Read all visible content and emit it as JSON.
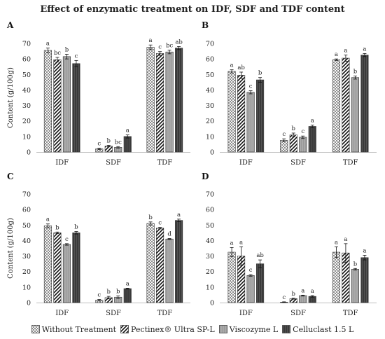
{
  "figure_title": "Effect of enzymatic treatment on IDF, SDF and TDF content",
  "colors": {
    "without_treatment": "#ffffff",
    "pectinex": "#ffffff",
    "viscozyme": "#a9a9a9",
    "celluclast": "#404040"
  },
  "legend": [
    {
      "name": "Without Treatment",
      "pattern": "dots"
    },
    {
      "name": "Pectinex® Ultra SP-L",
      "pattern": "diag"
    },
    {
      "name": "Viscozyme L",
      "pattern": "gray"
    },
    {
      "name": "Celluclast 1.5 L",
      "pattern": "dark"
    }
  ],
  "chart_data": [
    {
      "panel": "A",
      "type": "bar",
      "ylabel": "Content (g/100g)",
      "xlabel": "",
      "ylim": [
        0,
        70
      ],
      "yticks": [
        0,
        10,
        20,
        30,
        40,
        50,
        60,
        70
      ],
      "grid": false,
      "categories": [
        "IDF",
        "SDF",
        "TDF"
      ],
      "series": [
        {
          "name": "Without Treatment",
          "values": [
            65.5,
            2,
            67.5
          ],
          "errors": [
            1.5,
            0.5,
            1.5
          ],
          "letters": [
            "a",
            "c",
            "a"
          ]
        },
        {
          "name": "Pectinex® Ultra SP-L",
          "values": [
            59.5,
            3.8,
            63.5
          ],
          "errors": [
            1.5,
            0.5,
            1.2
          ],
          "letters": [
            "bc",
            "b",
            "c"
          ]
        },
        {
          "name": "Viscozyme L",
          "values": [
            61.5,
            3,
            64.5
          ],
          "errors": [
            1.5,
            0.5,
            1.2
          ],
          "letters": [
            "b",
            "bc",
            "bc"
          ]
        },
        {
          "name": "Celluclast 1.5 L",
          "values": [
            57,
            10,
            67
          ],
          "errors": [
            2,
            1,
            1
          ],
          "letters": [
            "c",
            "a",
            "ab"
          ]
        }
      ]
    },
    {
      "panel": "B",
      "type": "bar",
      "ylabel": "",
      "xlabel": "",
      "ylim": [
        0,
        70
      ],
      "yticks": [
        0,
        10,
        20,
        30,
        40,
        50,
        60,
        70
      ],
      "grid": false,
      "categories": [
        "IDF",
        "SDF",
        "TDF"
      ],
      "series": [
        {
          "name": "Without Treatment",
          "values": [
            52,
            7.5,
            59.5
          ],
          "errors": [
            1,
            1,
            0.5
          ],
          "letters": [
            "a",
            "c",
            "a"
          ]
        },
        {
          "name": "Pectinex® Ultra SP-L",
          "values": [
            49.5,
            11,
            60.5
          ],
          "errors": [
            2,
            1.2,
            2
          ],
          "letters": [
            "ab",
            "b",
            "a"
          ]
        },
        {
          "name": "Viscozyme L",
          "values": [
            38.5,
            9.5,
            48
          ],
          "errors": [
            1,
            0.8,
            1
          ],
          "letters": [
            "c",
            "c",
            "b"
          ]
        },
        {
          "name": "Celluclast 1.5 L",
          "values": [
            46.5,
            16.5,
            62.5
          ],
          "errors": [
            1.5,
            0.8,
            1
          ],
          "letters": [
            "b",
            "a",
            "a"
          ]
        }
      ]
    },
    {
      "panel": "C",
      "type": "bar",
      "ylabel": "Content (g/100g)",
      "xlabel": "",
      "ylim": [
        0,
        70
      ],
      "yticks": [
        0,
        10,
        20,
        30,
        40,
        50,
        60,
        70
      ],
      "grid": false,
      "categories": [
        "IDF",
        "SDF",
        "TDF"
      ],
      "series": [
        {
          "name": "Without Treatment",
          "values": [
            49.5,
            1.5,
            51
          ],
          "errors": [
            1.2,
            0.5,
            1
          ],
          "letters": [
            "a",
            "c",
            "b"
          ]
        },
        {
          "name": "Pectinex® Ultra SP-L",
          "values": [
            45,
            3.2,
            48
          ],
          "errors": [
            0.5,
            0.8,
            0.5
          ],
          "letters": [
            "b",
            "b",
            "c"
          ]
        },
        {
          "name": "Viscozyme L",
          "values": [
            37.5,
            3.5,
            41
          ],
          "errors": [
            0.5,
            0.8,
            0.3
          ],
          "letters": [
            "c",
            "b",
            "d"
          ]
        },
        {
          "name": "Celluclast 1.5 L",
          "values": [
            45,
            9,
            53
          ],
          "errors": [
            0.8,
            0.3,
            0.8
          ],
          "letters": [
            "b",
            "a",
            "a"
          ]
        }
      ]
    },
    {
      "panel": "D",
      "type": "bar",
      "ylabel": "",
      "xlabel": "",
      "ylim": [
        0,
        70
      ],
      "yticks": [
        0,
        10,
        20,
        30,
        40,
        50,
        60,
        70
      ],
      "grid": false,
      "categories": [
        "IDF",
        "SDF",
        "TDF"
      ],
      "series": [
        {
          "name": "Without Treatment",
          "values": [
            32.5,
            0.3,
            32.5
          ],
          "errors": [
            3,
            0.2,
            3.5
          ],
          "letters": [
            "a",
            "c",
            "a"
          ]
        },
        {
          "name": "Pectinex® Ultra SP-L",
          "values": [
            30,
            2.5,
            32
          ],
          "errors": [
            6,
            0.3,
            6
          ],
          "letters": [
            "a",
            "b",
            "a"
          ]
        },
        {
          "name": "Viscozyme L",
          "values": [
            17.5,
            4.5,
            21.5
          ],
          "errors": [
            0.5,
            0.3,
            0.5
          ],
          "letters": [
            "c",
            "a",
            "b"
          ]
        },
        {
          "name": "Celluclast 1.5 L",
          "values": [
            25,
            4,
            29
          ],
          "errors": [
            2.5,
            0.5,
            1.5
          ],
          "letters": [
            "ab",
            "a",
            "a"
          ]
        }
      ]
    }
  ]
}
